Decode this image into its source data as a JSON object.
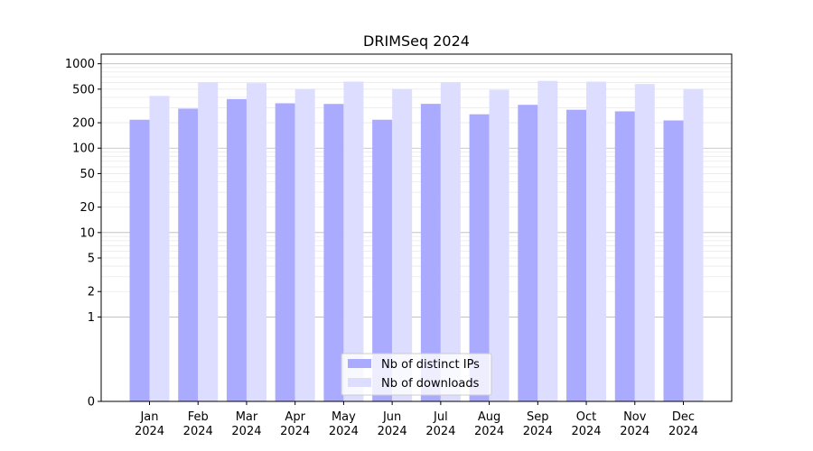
{
  "chart_data": {
    "type": "bar",
    "title": "DRIMSeq 2024",
    "xlabel": "",
    "ylabel": "",
    "yscale": "symlog",
    "ylim": [
      0,
      1300
    ],
    "yticks": [
      0,
      1,
      2,
      5,
      10,
      20,
      50,
      100,
      200,
      500,
      1000
    ],
    "grid": true,
    "legend_position": "bottom-center",
    "categories": [
      [
        "Jan",
        "2024"
      ],
      [
        "Feb",
        "2024"
      ],
      [
        "Mar",
        "2024"
      ],
      [
        "Apr",
        "2024"
      ],
      [
        "May",
        "2024"
      ],
      [
        "Jun",
        "2024"
      ],
      [
        "Jul",
        "2024"
      ],
      [
        "Aug",
        "2024"
      ],
      [
        "Sep",
        "2024"
      ],
      [
        "Oct",
        "2024"
      ],
      [
        "Nov",
        "2024"
      ],
      [
        "Dec",
        "2024"
      ]
    ],
    "series": [
      {
        "name": "Nb of distinct IPs",
        "color": "#aaaaff",
        "values": [
          217,
          294,
          381,
          340,
          334,
          217,
          335,
          252,
          326,
          285,
          273,
          213
        ]
      },
      {
        "name": "Nb of downloads",
        "color": "#ddddff",
        "values": [
          416,
          605,
          589,
          503,
          615,
          502,
          602,
          491,
          626,
          613,
          575,
          503
        ]
      }
    ]
  }
}
